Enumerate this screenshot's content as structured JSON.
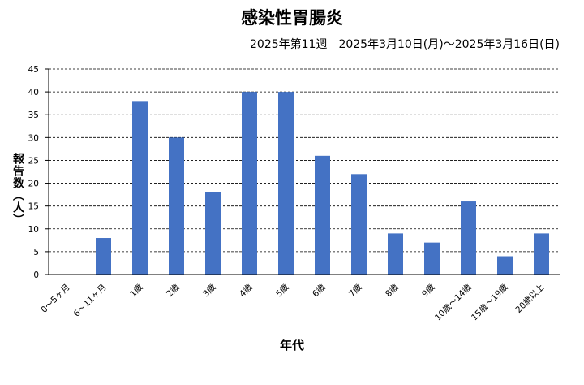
{
  "chart_data": {
    "type": "bar",
    "title": "感染性胃腸炎",
    "subtitle": "2025年第11週　2025年3月10日(月)〜2025年3月16日(日)",
    "xlabel": "年代",
    "ylabel": "報告数（人）",
    "categories": [
      "0〜5ヶ月",
      "6〜11ヶ月",
      "1歳",
      "2歳",
      "3歳",
      "4歳",
      "5歳",
      "6歳",
      "7歳",
      "8歳",
      "9歳",
      "10歳〜14歳",
      "15歳〜19歳",
      "20歳以上"
    ],
    "values": [
      0,
      8,
      38,
      30,
      18,
      40,
      40,
      26,
      22,
      9,
      7,
      16,
      4,
      9
    ],
    "ylim": [
      0,
      45
    ],
    "yticks": [
      "0",
      "5",
      "10",
      "15",
      "20",
      "25",
      "30",
      "35",
      "40",
      "45"
    ],
    "grid": "horizontal-dashed",
    "bar_color": "#4472C4"
  }
}
